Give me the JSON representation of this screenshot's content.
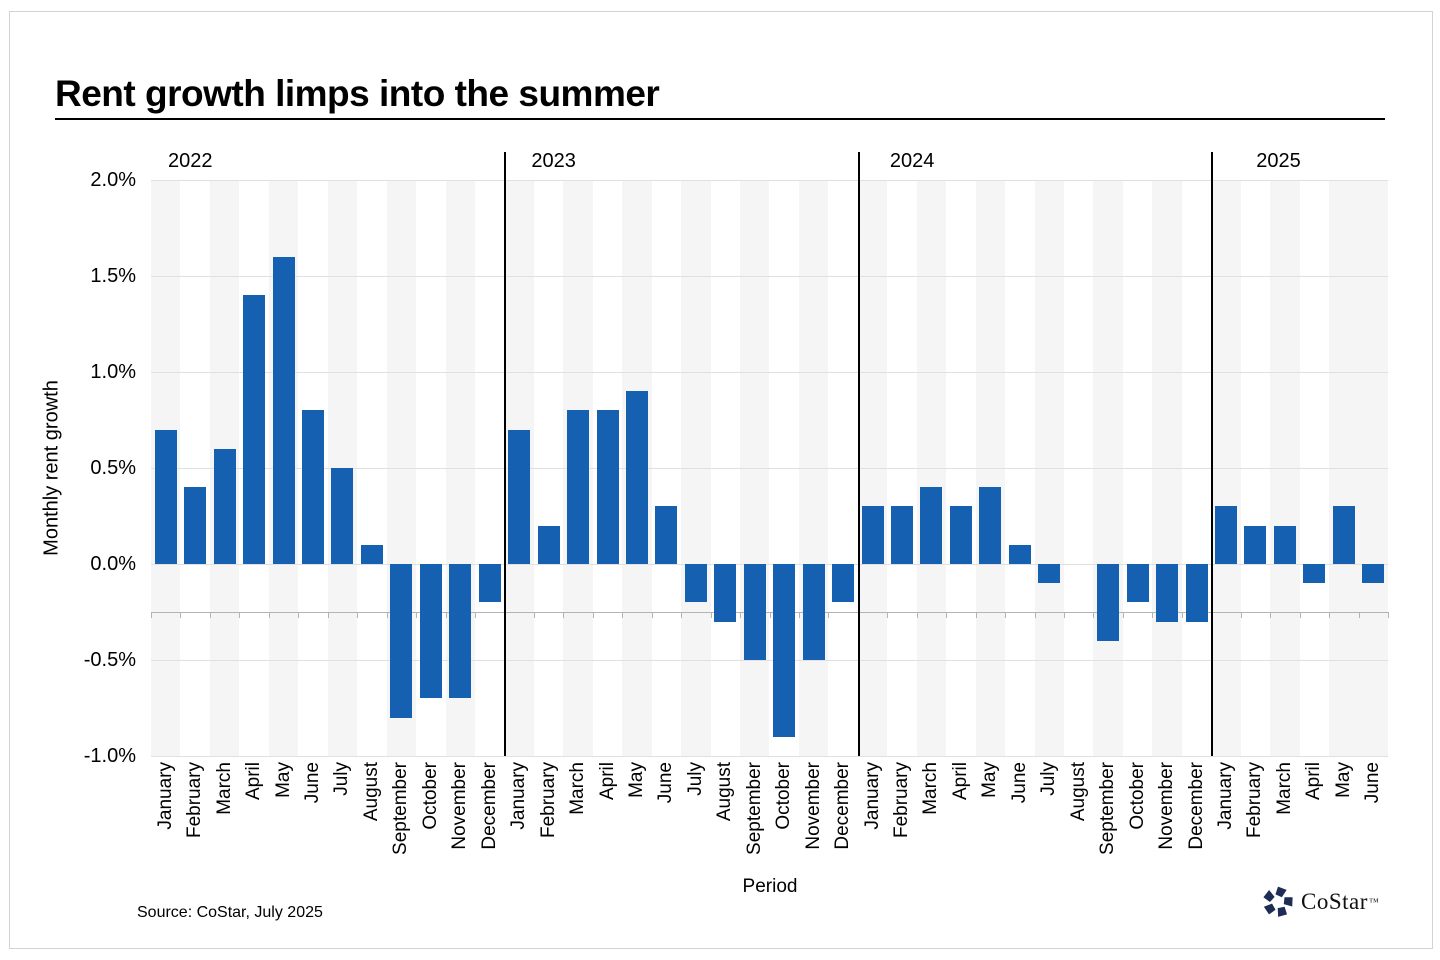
{
  "title": "Rent growth limps into the summer",
  "source_note": "Source: CoStar, July 2025",
  "logo": {
    "wordmark": "CoStar",
    "trademark": "™",
    "icon": "costar-pinwheel-icon",
    "icon_color": "#1f2c56"
  },
  "chart_data": {
    "type": "bar",
    "title": "Rent growth limps into the summer",
    "xlabel": "Period",
    "ylabel": "Monthly rent growth",
    "ylim": [
      -1.0,
      2.0
    ],
    "yticks": [
      2.0,
      1.5,
      1.0,
      0.5,
      0.0,
      -0.5,
      -1.0
    ],
    "ytick_format": "one-decimal-percent",
    "grid": "horizontal-at-yticks",
    "legend": "none",
    "category_axis_value": -0.25,
    "bar_color": "#1660b2",
    "stripe_color": "#f5f5f6",
    "gridline_color": "#e0e0e0",
    "category_axis_color": "#b3b3b3",
    "year_divider_color": "#000000",
    "shading_rule": "alternate-month-columns-shaded-starting-january",
    "last_column_also_shaded": true,
    "groups": [
      {
        "year": "2022",
        "categories": [
          "January",
          "February",
          "March",
          "April",
          "May",
          "June",
          "July",
          "August",
          "September",
          "October",
          "November",
          "December"
        ],
        "values": [
          0.7,
          0.4,
          0.6,
          1.4,
          1.6,
          0.8,
          0.5,
          0.1,
          -0.8,
          -0.7,
          -0.7,
          -0.2
        ]
      },
      {
        "year": "2023",
        "categories": [
          "January",
          "February",
          "March",
          "April",
          "May",
          "June",
          "July",
          "August",
          "September",
          "October",
          "November",
          "December"
        ],
        "values": [
          0.7,
          0.2,
          0.8,
          0.8,
          0.9,
          0.3,
          -0.2,
          -0.3,
          -0.5,
          -0.9,
          -0.5,
          -0.2
        ]
      },
      {
        "year": "2024",
        "categories": [
          "January",
          "February",
          "March",
          "April",
          "May",
          "June",
          "July",
          "August",
          "September",
          "October",
          "November",
          "December"
        ],
        "values": [
          0.3,
          0.3,
          0.4,
          0.3,
          0.4,
          0.1,
          -0.1,
          0.0,
          -0.4,
          -0.2,
          -0.3,
          -0.3
        ]
      },
      {
        "year": "2025",
        "categories": [
          "January",
          "February",
          "March",
          "April",
          "May",
          "June"
        ],
        "values": [
          0.3,
          0.2,
          0.2,
          -0.1,
          0.3,
          -0.1
        ]
      }
    ]
  }
}
